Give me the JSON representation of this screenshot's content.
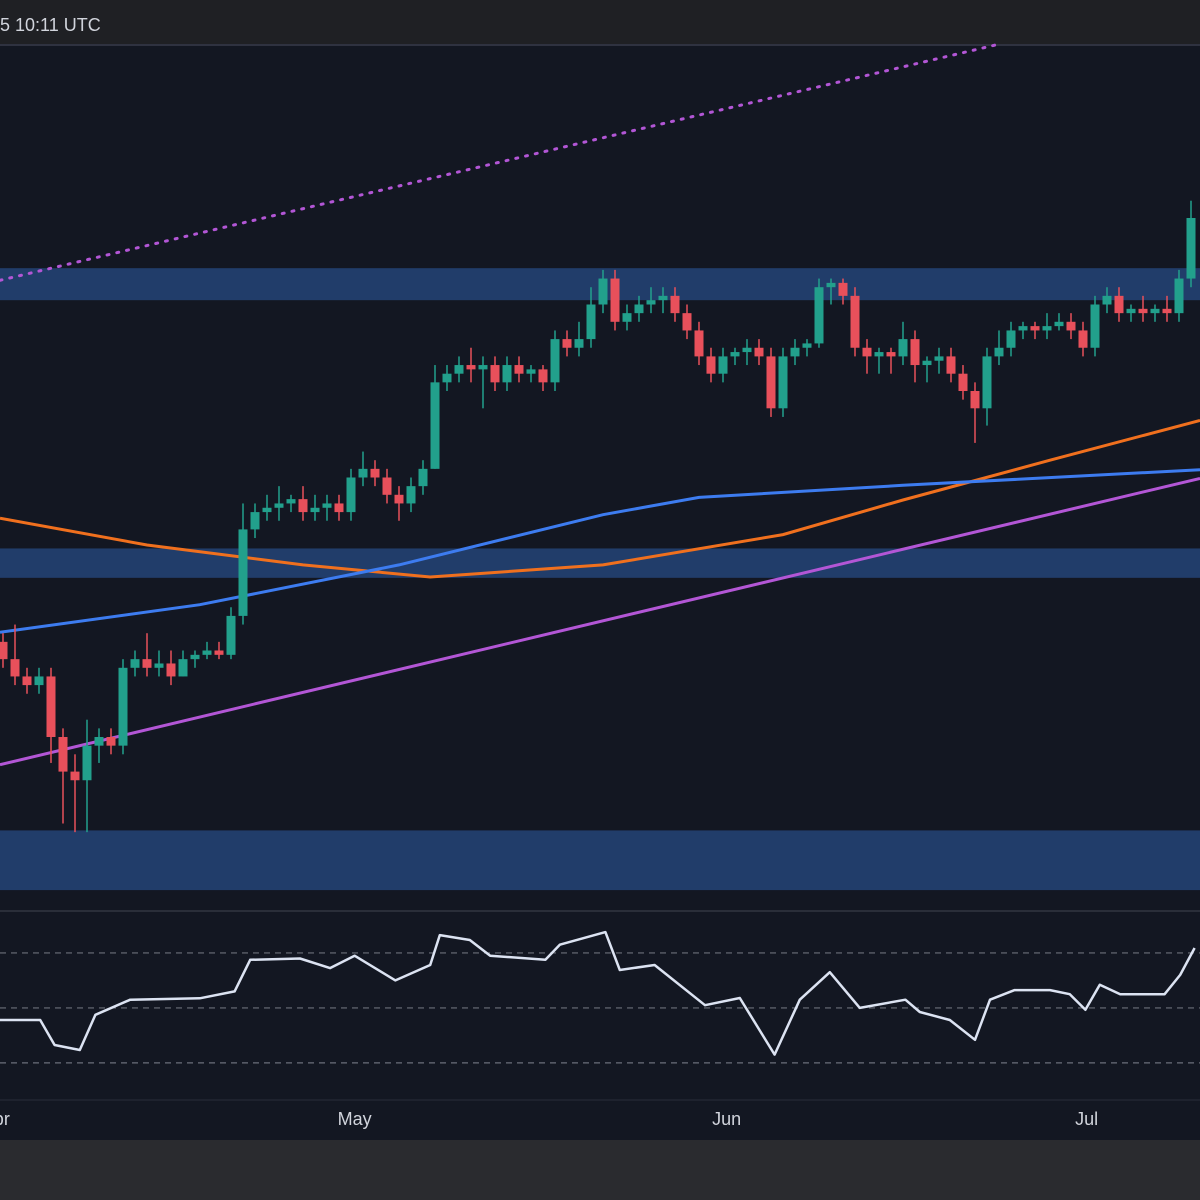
{
  "chart_data": {
    "type": "candlestick",
    "timestamp": "5 10:11 UTC",
    "xlim": [
      -0.25,
      99.75
    ],
    "ylim": [
      0,
      100
    ],
    "up_color": "#22a08c",
    "down_color": "#e8505b",
    "candles": [
      [
        31,
        32,
        28,
        29
      ],
      [
        29,
        33,
        26,
        27
      ],
      [
        27,
        28,
        25,
        26
      ],
      [
        26,
        28,
        25,
        27
      ],
      [
        27,
        28,
        17,
        20
      ],
      [
        20,
        21,
        10,
        16
      ],
      [
        16,
        18,
        9,
        15
      ],
      [
        15,
        22,
        9,
        19
      ],
      [
        19,
        21,
        17,
        20
      ],
      [
        20,
        21,
        18,
        19
      ],
      [
        19,
        29,
        18,
        28
      ],
      [
        28,
        30,
        27,
        29
      ],
      [
        29,
        32,
        27,
        28
      ],
      [
        28,
        30,
        27,
        28.5
      ],
      [
        28.5,
        30,
        26,
        27
      ],
      [
        27,
        30,
        27,
        29
      ],
      [
        29,
        30,
        28,
        29.5
      ],
      [
        29.5,
        31,
        29,
        30
      ],
      [
        30,
        31,
        29,
        29.5
      ],
      [
        29.5,
        35,
        29,
        34
      ],
      [
        34,
        47,
        33,
        44
      ],
      [
        44,
        47,
        43,
        46
      ],
      [
        46,
        48,
        45,
        46.5
      ],
      [
        46.5,
        49,
        45,
        47
      ],
      [
        47,
        48,
        46,
        47.5
      ],
      [
        47.5,
        49,
        45,
        46
      ],
      [
        46,
        48,
        45,
        46.5
      ],
      [
        46.5,
        48,
        45,
        47
      ],
      [
        47,
        48,
        45,
        46
      ],
      [
        46,
        51,
        45,
        50
      ],
      [
        50,
        53,
        49,
        51
      ],
      [
        51,
        52,
        49,
        50
      ],
      [
        50,
        51,
        47,
        48
      ],
      [
        48,
        49,
        45,
        47
      ],
      [
        47,
        50,
        46,
        49
      ],
      [
        49,
        52,
        48,
        51
      ],
      [
        51,
        63,
        51,
        61
      ],
      [
        61,
        63,
        60,
        62
      ],
      [
        62,
        64,
        61,
        63
      ],
      [
        63,
        65,
        61,
        62.5
      ],
      [
        62.5,
        64,
        58,
        63
      ],
      [
        63,
        64,
        60,
        61
      ],
      [
        61,
        64,
        60,
        63
      ],
      [
        63,
        64,
        61,
        62
      ],
      [
        62,
        63,
        61,
        62.5
      ],
      [
        62.5,
        63,
        60,
        61
      ],
      [
        61,
        67,
        60,
        66
      ],
      [
        66,
        67,
        64,
        65
      ],
      [
        65,
        68,
        64,
        66
      ],
      [
        66,
        72,
        65,
        70
      ],
      [
        70,
        74,
        69,
        73
      ],
      [
        73,
        74,
        67,
        68
      ],
      [
        68,
        70,
        67,
        69
      ],
      [
        69,
        71,
        68,
        70
      ],
      [
        70,
        72,
        69,
        70.5
      ],
      [
        70.5,
        72,
        69,
        71
      ],
      [
        71,
        72,
        68,
        69
      ],
      [
        69,
        70,
        66,
        67
      ],
      [
        67,
        68,
        63,
        64
      ],
      [
        64,
        65,
        61,
        62
      ],
      [
        62,
        65,
        61,
        64
      ],
      [
        64,
        65,
        63,
        64.5
      ],
      [
        64.5,
        66,
        63,
        65
      ],
      [
        65,
        66,
        63,
        64
      ],
      [
        64,
        65,
        57,
        58
      ],
      [
        58,
        65,
        57,
        64
      ],
      [
        64,
        66,
        63,
        65
      ],
      [
        65,
        66,
        64,
        65.5
      ],
      [
        65.5,
        73,
        65,
        72
      ],
      [
        72,
        73,
        70,
        72.5
      ],
      [
        72.5,
        73,
        70,
        71
      ],
      [
        71,
        72,
        64,
        65
      ],
      [
        65,
        66,
        62,
        64
      ],
      [
        64,
        65,
        62,
        64.5
      ],
      [
        64.5,
        65,
        62,
        64
      ],
      [
        64,
        68,
        63,
        66
      ],
      [
        66,
        67,
        61,
        63
      ],
      [
        63,
        64,
        61,
        63.5
      ],
      [
        63.5,
        65,
        62,
        64
      ],
      [
        64,
        65,
        61,
        62
      ],
      [
        62,
        63,
        59,
        60
      ],
      [
        60,
        61,
        54,
        58
      ],
      [
        58,
        65,
        56,
        64
      ],
      [
        64,
        67,
        63,
        65
      ],
      [
        65,
        68,
        64,
        67
      ],
      [
        67,
        68,
        66,
        67.5
      ],
      [
        67.5,
        68,
        66,
        67
      ],
      [
        67,
        69,
        66,
        67.5
      ],
      [
        67.5,
        69,
        67,
        68
      ],
      [
        68,
        69,
        66,
        67
      ],
      [
        67,
        68,
        64,
        65
      ],
      [
        65,
        71,
        64,
        70
      ],
      [
        70,
        72,
        69,
        71
      ],
      [
        71,
        72,
        68,
        69
      ],
      [
        69,
        70,
        68,
        69.5
      ],
      [
        69.5,
        71,
        68,
        69
      ],
      [
        69,
        70,
        68,
        69.5
      ],
      [
        69.5,
        71,
        68,
        69
      ],
      [
        69,
        74,
        68,
        73
      ],
      [
        73,
        82,
        72,
        80
      ]
    ],
    "zones": [
      [
        70.5,
        74.2
      ],
      [
        38.4,
        41.8
      ],
      [
        2.3,
        9.2
      ]
    ],
    "zone_color": "#254477",
    "lines": [
      {
        "color": "#f0701e",
        "dotted": false,
        "x": [
          -0.25,
          12,
          25,
          35.6,
          50,
          65,
          75,
          87.25,
          99.75
        ],
        "values": [
          45.3,
          42.2,
          39.9,
          38.5,
          39.9,
          43.4,
          47.4,
          52,
          56.6
        ]
      },
      {
        "color": "#3d7cf0",
        "dotted": false,
        "x": [
          -0.25,
          16.4,
          33,
          50,
          58,
          75,
          99.75
        ],
        "values": [
          32.1,
          35.3,
          39.9,
          45.7,
          47.7,
          49.1,
          50.9
        ]
      },
      {
        "color": "#b356d6",
        "dotted": false,
        "x": [
          -0.25,
          99.75
        ],
        "values": [
          16.8,
          49.9
        ]
      },
      {
        "color": "#b356d6",
        "dotted": true,
        "x": [
          -0.25,
          82.7
        ],
        "values": [
          72.8,
          100
        ]
      }
    ],
    "rsi": {
      "color": "#dce3f2",
      "ylim": [
        16.5,
        84.9
      ],
      "levels": [
        70,
        50,
        30
      ],
      "x": [
        -0.25,
        3.1,
        4.3,
        6.4,
        7.7,
        10.6,
        16.4,
        19.3,
        20.6,
        24.75,
        27.25,
        29.3,
        32.7,
        35.6,
        36.4,
        38.9,
        40.6,
        45.2,
        46.4,
        50.2,
        51.4,
        54.3,
        58.5,
        61.4,
        64.3,
        66.4,
        68.9,
        71.4,
        75.2,
        76.4,
        78.9,
        81,
        82.25,
        84.3,
        87.25,
        88.9,
        90.2,
        91.4,
        93.1,
        96.8,
        98.1,
        99.3
      ],
      "values": [
        45.6,
        45.6,
        36.5,
        34.7,
        47.5,
        53,
        53.5,
        56,
        67.5,
        68,
        64.5,
        69,
        60,
        65.6,
        76.5,
        74.7,
        69,
        67.5,
        73,
        77.6,
        63.8,
        65.6,
        51,
        53.6,
        33,
        53,
        63,
        50,
        53,
        48.5,
        45.6,
        38.4,
        53,
        56.5,
        56.5,
        55,
        49.3,
        58.4,
        55,
        55,
        62,
        71.8
      ]
    },
    "time_labels": [
      {
        "label": "Apr",
        "x": -0.6
      },
      {
        "label": "May",
        "x": 29.3
      },
      {
        "label": "Jun",
        "x": 60.3
      },
      {
        "label": "Jul",
        "x": 90.3
      }
    ]
  }
}
